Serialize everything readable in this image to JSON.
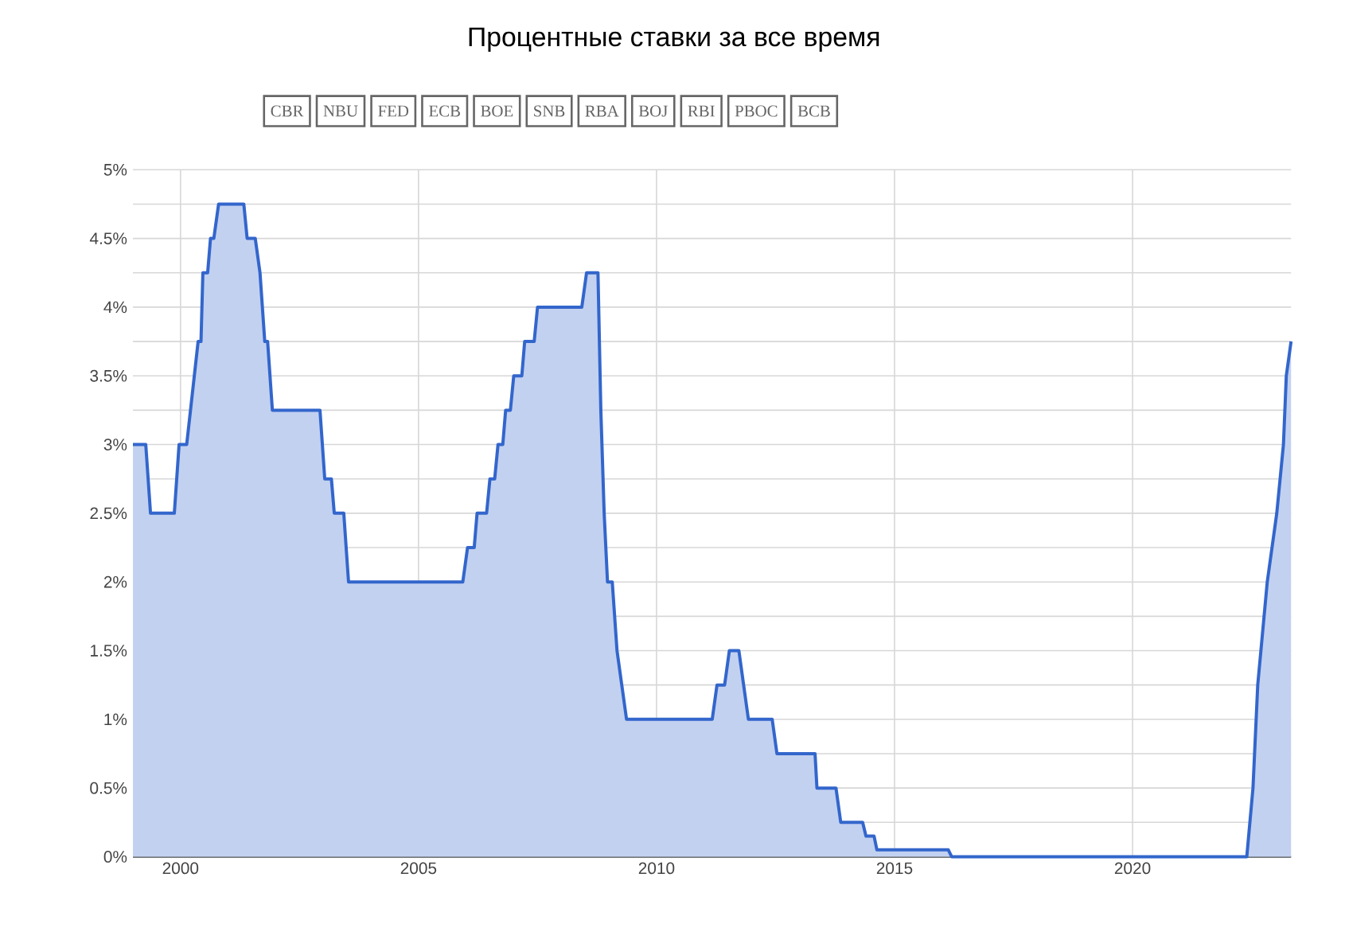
{
  "chart_data": {
    "type": "area",
    "title": "Процентные ставки за все время",
    "annotations": [
      "CBR",
      "NBU",
      "FED",
      "ECB",
      "BOE",
      "SNB",
      "RBA",
      "BOJ",
      "RBI",
      "PBOC",
      "BCB"
    ],
    "x": [
      1999.0,
      1999.27,
      1999.37,
      1999.87,
      1999.97,
      2000.13,
      2000.37,
      2000.43,
      2000.47,
      2000.57,
      2000.63,
      2000.7,
      2000.8,
      2001.33,
      2001.4,
      2001.57,
      2001.67,
      2001.77,
      2001.83,
      2001.93,
      2002.93,
      2003.03,
      2003.17,
      2003.23,
      2003.43,
      2003.53,
      2005.93,
      2006.03,
      2006.17,
      2006.23,
      2006.43,
      2006.5,
      2006.6,
      2006.67,
      2006.77,
      2006.83,
      2006.93,
      2007.0,
      2007.17,
      2007.23,
      2007.43,
      2007.5,
      2008.43,
      2008.53,
      2008.77,
      2008.83,
      2008.9,
      2008.97,
      2009.07,
      2009.17,
      2009.27,
      2009.37,
      2011.17,
      2011.27,
      2011.43,
      2011.53,
      2011.73,
      2011.83,
      2011.93,
      2012.43,
      2012.53,
      2013.33,
      2013.37,
      2013.77,
      2013.87,
      2014.33,
      2014.4,
      2014.57,
      2014.63,
      2016.13,
      2016.2,
      2022.4,
      2022.53,
      2022.63,
      2022.83,
      2023.03,
      2023.17,
      2023.23,
      2023.33
    ],
    "series": [
      {
        "color": "#3366cc",
        "values": [
          3.0,
          3.0,
          2.5,
          2.5,
          3.0,
          3.0,
          3.75,
          3.75,
          4.25,
          4.25,
          4.5,
          4.5,
          4.75,
          4.75,
          4.5,
          4.5,
          4.25,
          3.75,
          3.75,
          3.25,
          3.25,
          2.75,
          2.75,
          2.5,
          2.5,
          2.0,
          2.0,
          2.25,
          2.25,
          2.5,
          2.5,
          2.75,
          2.75,
          3.0,
          3.0,
          3.25,
          3.25,
          3.5,
          3.5,
          3.75,
          3.75,
          4.0,
          4.0,
          4.25,
          4.25,
          3.25,
          2.5,
          2.0,
          2.0,
          1.5,
          1.25,
          1.0,
          1.0,
          1.25,
          1.25,
          1.5,
          1.5,
          1.25,
          1.0,
          1.0,
          0.75,
          0.75,
          0.5,
          0.5,
          0.25,
          0.25,
          0.15,
          0.15,
          0.05,
          0.05,
          0.0,
          0.0,
          0.5,
          1.25,
          2.0,
          2.5,
          3.0,
          3.5,
          3.75
        ]
      }
    ],
    "xlim": [
      1999.0,
      2023.33
    ],
    "xticks": [
      2000,
      2005,
      2010,
      2015,
      2020
    ],
    "ylim": [
      0,
      5
    ],
    "yticks": [
      {
        "value": 0,
        "label": "0%"
      },
      {
        "value": 0.25,
        "label": null
      },
      {
        "value": 0.5,
        "label": "0.5%"
      },
      {
        "value": 0.75,
        "label": null
      },
      {
        "value": 1,
        "label": "1%"
      },
      {
        "value": 1.25,
        "label": null
      },
      {
        "value": 1.5,
        "label": "1.5%"
      },
      {
        "value": 1.75,
        "label": null
      },
      {
        "value": 2,
        "label": "2%"
      },
      {
        "value": 2.25,
        "label": null
      },
      {
        "value": 2.5,
        "label": "2.5%"
      },
      {
        "value": 2.75,
        "label": null
      },
      {
        "value": 3,
        "label": "3%"
      },
      {
        "value": 3.25,
        "label": null
      },
      {
        "value": 3.5,
        "label": "3.5%"
      },
      {
        "value": 3.75,
        "label": null
      },
      {
        "value": 4,
        "label": "4%"
      },
      {
        "value": 4.25,
        "label": null
      },
      {
        "value": 4.5,
        "label": "4.5%"
      },
      {
        "value": 4.75,
        "label": null
      },
      {
        "value": 5,
        "label": "5%"
      }
    ],
    "grid": true
  }
}
